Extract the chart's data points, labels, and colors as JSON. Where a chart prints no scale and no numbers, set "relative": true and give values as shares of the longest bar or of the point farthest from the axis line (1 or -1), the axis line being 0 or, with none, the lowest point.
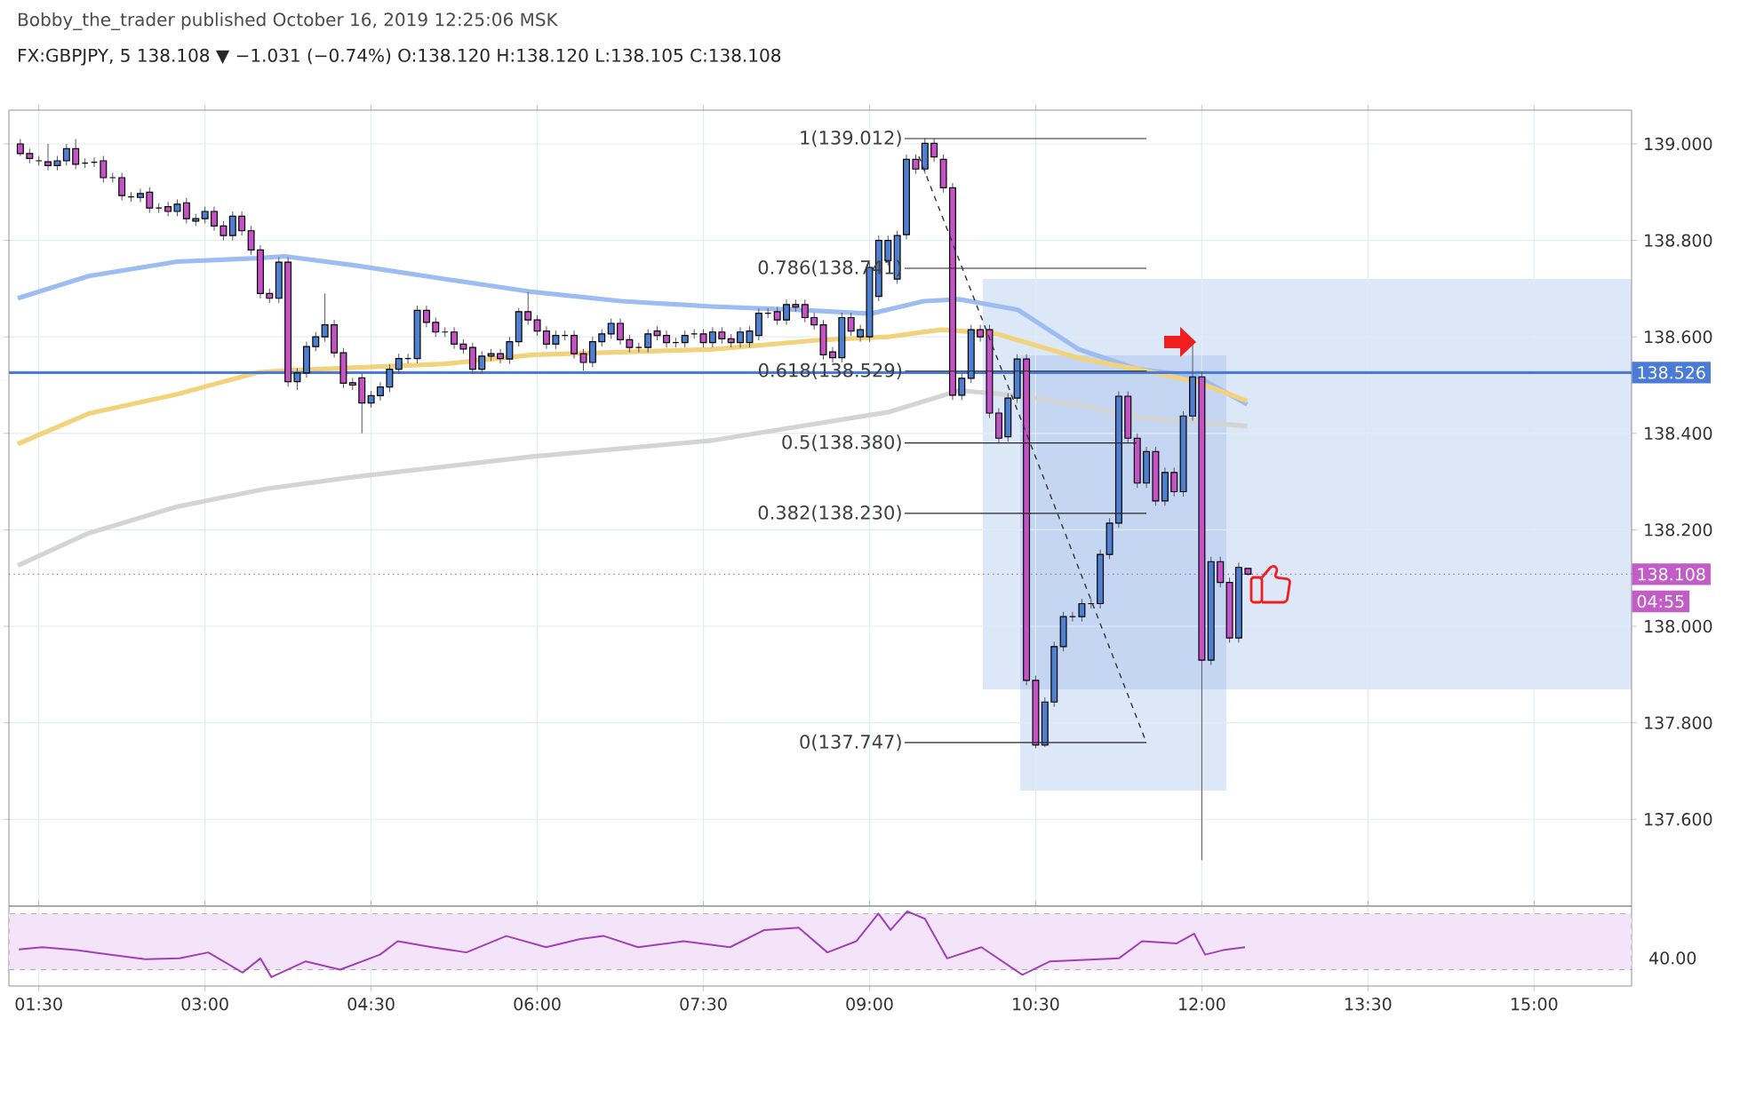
{
  "chart_data": [
    {
      "type": "candlestick",
      "title": "Bobby_the_trader published October 16, 2019 12:25:06 MSK",
      "subtitle": "FX:GBPJPY, 5  138.108 ▼ −1.031 (−0.74%) O:138.120 H:138.120 L:138.105 C:138.108",
      "x": [
        1.333,
        1.417,
        1.5,
        1.583,
        1.667,
        1.75,
        1.833,
        1.917,
        2,
        2.083,
        2.167,
        2.25,
        2.333,
        2.417,
        2.5,
        2.583,
        2.667,
        2.75,
        2.833,
        2.917,
        3,
        3.083,
        3.167,
        3.25,
        3.333,
        3.417,
        3.5,
        3.583,
        3.667,
        3.75,
        3.833,
        3.917,
        4,
        4.083,
        4.167,
        4.25,
        4.333,
        4.417,
        4.5,
        4.583,
        4.667,
        4.75,
        4.833,
        4.917,
        5,
        5.083,
        5.167,
        5.25,
        5.333,
        5.417,
        5.5,
        5.583,
        5.667,
        5.75,
        5.833,
        5.917,
        6,
        6.083,
        6.167,
        6.25,
        6.333,
        6.417,
        6.5,
        6.583,
        6.667,
        6.75,
        6.833,
        6.917,
        7,
        7.083,
        7.167,
        7.25,
        7.333,
        7.417,
        7.5,
        7.583,
        7.667,
        7.75,
        7.833,
        7.917,
        8,
        8.083,
        8.167,
        8.25,
        8.333,
        8.417,
        8.5,
        8.583,
        8.667,
        8.75,
        8.833,
        8.917,
        9,
        9.083,
        9.167,
        9.25,
        9.333,
        9.417,
        9.5,
        9.583,
        9.667,
        9.75,
        9.833,
        9.917,
        10,
        10.083,
        10.167,
        10.25,
        10.333,
        10.417,
        10.5,
        10.583,
        10.667,
        10.75,
        10.833,
        10.917,
        11,
        11.083,
        11.167,
        11.25,
        11.333,
        11.417,
        11.5,
        11.583,
        11.667,
        11.75,
        11.833,
        11.917,
        12,
        12.083,
        12.167,
        12.25,
        12.333,
        12.417
      ],
      "ohlc": [
        [
          139.0,
          139.01,
          138.975,
          138.98
        ],
        [
          138.98,
          138.99,
          138.96,
          138.97
        ],
        [
          138.965,
          138.975,
          138.955,
          138.965
        ],
        [
          138.963,
          139.0,
          138.945,
          138.955
        ],
        [
          138.955,
          138.975,
          138.945,
          138.965
        ],
        [
          138.965,
          139.0,
          138.955,
          138.99
        ],
        [
          138.99,
          139.01,
          138.948,
          138.958
        ],
        [
          138.96,
          138.97,
          138.95,
          138.96
        ],
        [
          138.962,
          138.972,
          138.952,
          138.962
        ],
        [
          138.965,
          138.975,
          138.92,
          138.93
        ],
        [
          138.93,
          138.94,
          138.92,
          138.93
        ],
        [
          138.93,
          138.94,
          138.883,
          138.893
        ],
        [
          138.89,
          138.9,
          138.88,
          138.89
        ],
        [
          138.889,
          138.907,
          138.879,
          138.897
        ],
        [
          138.9,
          138.91,
          138.857,
          138.867
        ],
        [
          138.867,
          138.877,
          138.857,
          138.867
        ],
        [
          138.87,
          138.88,
          138.85,
          138.86
        ],
        [
          138.86,
          138.885,
          138.85,
          138.875
        ],
        [
          138.878,
          138.888,
          138.835,
          138.845
        ],
        [
          138.84,
          138.855,
          138.83,
          138.845
        ],
        [
          138.845,
          138.87,
          138.835,
          138.86
        ],
        [
          138.86,
          138.87,
          138.82,
          138.83
        ],
        [
          138.83,
          138.84,
          138.8,
          138.81
        ],
        [
          138.81,
          138.86,
          138.8,
          138.85
        ],
        [
          138.85,
          138.86,
          138.81,
          138.82
        ],
        [
          138.82,
          138.83,
          138.77,
          138.78
        ],
        [
          138.78,
          138.79,
          138.68,
          138.69
        ],
        [
          138.69,
          138.7,
          138.67,
          138.68
        ],
        [
          138.68,
          138.765,
          138.67,
          138.755
        ],
        [
          138.755,
          138.765,
          138.497,
          138.507
        ],
        [
          138.507,
          138.535,
          138.49,
          138.525
        ],
        [
          138.525,
          138.59,
          138.515,
          138.58
        ],
        [
          138.58,
          138.61,
          138.57,
          138.6
        ],
        [
          138.6,
          138.69,
          138.59,
          138.625
        ],
        [
          138.625,
          138.635,
          138.557,
          138.567
        ],
        [
          138.567,
          138.577,
          138.494,
          138.504
        ],
        [
          138.505,
          138.515,
          138.49,
          138.5
        ],
        [
          138.515,
          138.525,
          138.4,
          138.463
        ],
        [
          138.463,
          138.488,
          138.453,
          138.478
        ],
        [
          138.478,
          138.506,
          138.468,
          138.496
        ],
        [
          138.496,
          138.543,
          138.486,
          138.533
        ],
        [
          138.533,
          138.565,
          138.523,
          138.555
        ],
        [
          138.555,
          138.565,
          138.545,
          138.555
        ],
        [
          138.555,
          138.665,
          138.545,
          138.655
        ],
        [
          138.655,
          138.665,
          138.62,
          138.63
        ],
        [
          138.63,
          138.64,
          138.6,
          138.61
        ],
        [
          138.61,
          138.62,
          138.6,
          138.61
        ],
        [
          138.61,
          138.62,
          138.575,
          138.585
        ],
        [
          138.585,
          138.595,
          138.565,
          138.575
        ],
        [
          138.578,
          138.588,
          138.523,
          138.533
        ],
        [
          138.533,
          138.57,
          138.523,
          138.56
        ],
        [
          138.56,
          138.575,
          138.55,
          138.565
        ],
        [
          138.565,
          138.575,
          138.545,
          138.555
        ],
        [
          138.554,
          138.6,
          138.544,
          138.59
        ],
        [
          138.59,
          138.66,
          138.58,
          138.652
        ],
        [
          138.652,
          138.693,
          138.625,
          138.635
        ],
        [
          138.635,
          138.645,
          138.602,
          138.612
        ],
        [
          138.612,
          138.622,
          138.575,
          138.585
        ],
        [
          138.585,
          138.613,
          138.575,
          138.603
        ],
        [
          138.603,
          138.613,
          138.593,
          138.603
        ],
        [
          138.603,
          138.613,
          138.555,
          138.565
        ],
        [
          138.565,
          138.575,
          138.53,
          138.547
        ],
        [
          138.547,
          138.6,
          138.537,
          138.59
        ],
        [
          138.59,
          138.616,
          138.58,
          138.606
        ],
        [
          138.606,
          138.638,
          138.596,
          138.628
        ],
        [
          138.628,
          138.638,
          138.584,
          138.594
        ],
        [
          138.594,
          138.604,
          138.568,
          138.578
        ],
        [
          138.578,
          138.588,
          138.568,
          138.578
        ],
        [
          138.578,
          138.616,
          138.568,
          138.606
        ],
        [
          138.612,
          138.622,
          138.593,
          138.603
        ],
        [
          138.603,
          138.613,
          138.578,
          138.588
        ],
        [
          138.588,
          138.598,
          138.578,
          138.588
        ],
        [
          138.588,
          138.613,
          138.578,
          138.603
        ],
        [
          138.606,
          138.616,
          138.596,
          138.606
        ],
        [
          138.606,
          138.616,
          138.578,
          138.588
        ],
        [
          138.588,
          138.62,
          138.578,
          138.61
        ],
        [
          138.61,
          138.62,
          138.586,
          138.596
        ],
        [
          138.596,
          138.606,
          138.578,
          138.588
        ],
        [
          138.588,
          138.62,
          138.578,
          138.61
        ],
        [
          138.588,
          138.622,
          138.578,
          138.612
        ],
        [
          138.603,
          138.659,
          138.593,
          138.649
        ],
        [
          138.649,
          138.659,
          138.639,
          138.649
        ],
        [
          138.652,
          138.662,
          138.625,
          138.635
        ],
        [
          138.635,
          138.677,
          138.625,
          138.667
        ],
        [
          138.667,
          138.677,
          138.652,
          138.662
        ],
        [
          138.667,
          138.677,
          138.63,
          138.64
        ],
        [
          138.64,
          138.65,
          138.615,
          138.625
        ],
        [
          138.625,
          138.635,
          138.553,
          138.563
        ],
        [
          138.569,
          138.579,
          138.547,
          138.557
        ],
        [
          138.557,
          138.65,
          138.547,
          138.64
        ],
        [
          138.64,
          138.65,
          138.602,
          138.612
        ],
        [
          138.6,
          138.625,
          138.59,
          138.615
        ],
        [
          138.6,
          138.754,
          138.59,
          138.744
        ],
        [
          138.684,
          138.81,
          138.674,
          138.8
        ],
        [
          138.758,
          138.81,
          138.748,
          138.8
        ],
        [
          138.72,
          138.82,
          138.71,
          138.81
        ],
        [
          138.812,
          138.978,
          138.802,
          138.968
        ],
        [
          138.968,
          138.978,
          138.938,
          138.948
        ],
        [
          138.948,
          139.012,
          138.938,
          139.001
        ],
        [
          139.001,
          139.011,
          138.963,
          138.973
        ],
        [
          138.968,
          138.978,
          138.899,
          138.909
        ],
        [
          138.909,
          138.919,
          138.469,
          138.479
        ],
        [
          138.479,
          138.524,
          138.469,
          138.514
        ],
        [
          138.514,
          138.625,
          138.504,
          138.615
        ],
        [
          138.615,
          138.625,
          138.59,
          138.6
        ],
        [
          138.615,
          138.625,
          138.432,
          138.442
        ],
        [
          138.442,
          138.452,
          138.38,
          138.39
        ],
        [
          138.393,
          138.483,
          138.383,
          138.473
        ],
        [
          138.473,
          138.564,
          138.463,
          138.554
        ],
        [
          138.554,
          138.564,
          137.878,
          137.888
        ],
        [
          137.888,
          137.898,
          137.747,
          137.754
        ],
        [
          137.754,
          137.853,
          137.75,
          137.843
        ],
        [
          137.843,
          137.968,
          137.833,
          137.958
        ],
        [
          137.958,
          138.03,
          137.948,
          138.02
        ],
        [
          138.02,
          138.03,
          138.01,
          138.02
        ],
        [
          138.02,
          138.057,
          138.01,
          138.047
        ],
        [
          138.047,
          138.057,
          138.037,
          138.047
        ],
        [
          138.047,
          138.159,
          138.037,
          138.149
        ],
        [
          138.149,
          138.224,
          138.139,
          138.214
        ],
        [
          138.214,
          138.487,
          138.204,
          138.477
        ],
        [
          138.477,
          138.487,
          138.38,
          138.39
        ],
        [
          138.39,
          138.4,
          138.287,
          138.297
        ],
        [
          138.297,
          138.372,
          138.287,
          138.362
        ],
        [
          138.362,
          138.372,
          138.25,
          138.26
        ],
        [
          138.26,
          138.329,
          138.25,
          138.319
        ],
        [
          138.319,
          138.329,
          138.269,
          138.279
        ],
        [
          138.279,
          138.446,
          138.269,
          138.436
        ],
        [
          138.436,
          138.588,
          138.426,
          138.517
        ],
        [
          138.517,
          138.527,
          137.515,
          137.93
        ],
        [
          137.93,
          138.144,
          137.92,
          138.134
        ],
        [
          138.134,
          138.144,
          138.081,
          138.091
        ],
        [
          138.091,
          138.101,
          137.966,
          137.976
        ],
        [
          137.976,
          138.132,
          137.966,
          138.122
        ],
        [
          138.12,
          138.12,
          138.105,
          138.108
        ]
      ],
      "series": [
        {
          "type": "line",
          "color": "#9dbcf2",
          "x": [
            1.31,
            1.95,
            2.75,
            3.47,
            3.72,
            4.36,
            5.16,
            5.96,
            6.76,
            7.57,
            8.37,
            9.01,
            9.49,
            9.81,
            10.34,
            10.89,
            11.42,
            11.95,
            12.41
          ],
          "values": [
            138.68,
            138.726,
            138.756,
            138.763,
            138.767,
            138.748,
            138.72,
            138.693,
            138.674,
            138.663,
            138.656,
            138.648,
            138.674,
            138.678,
            138.656,
            138.574,
            138.533,
            138.519,
            138.46
          ]
        },
        {
          "type": "line",
          "color": "#f3d27c",
          "x": [
            1.31,
            1.95,
            2.75,
            3.47,
            3.72,
            5.16,
            5.96,
            7.57,
            8.53,
            9.17,
            9.65,
            10.14,
            10.89,
            11.42,
            11.95,
            12.41
          ],
          "values": [
            138.378,
            138.441,
            138.481,
            138.526,
            138.53,
            138.544,
            138.563,
            138.574,
            138.593,
            138.6,
            138.615,
            138.607,
            138.556,
            138.533,
            138.507,
            138.467
          ]
        },
        {
          "type": "line",
          "color": "#d4d4d4",
          "x": [
            1.31,
            1.95,
            2.75,
            3.55,
            4.36,
            5.96,
            7.57,
            9.17,
            9.81,
            10.34,
            10.89,
            11.42,
            12.41
          ],
          "values": [
            138.126,
            138.193,
            138.248,
            138.285,
            138.31,
            138.352,
            138.385,
            138.444,
            138.489,
            138.478,
            138.459,
            138.433,
            138.415
          ]
        }
      ],
      "xlim": [
        1.23,
        15.88
      ],
      "ylim": [
        137.42,
        139.07
      ],
      "xticks": [
        {
          "value": 1.5,
          "label": null
        },
        {
          "value": 3,
          "label": null
        },
        {
          "value": 4.5,
          "label": null
        },
        {
          "value": 6,
          "label": null
        },
        {
          "value": 7.5,
          "label": null
        },
        {
          "value": 9,
          "label": null
        },
        {
          "value": 10.5,
          "label": null
        },
        {
          "value": 12,
          "label": null
        },
        {
          "value": 13.5,
          "label": null
        },
        {
          "value": 15,
          "label": null
        }
      ],
      "yticks": [
        {
          "value": 137.6,
          "label": "137.600"
        },
        {
          "value": 137.8,
          "label": "137.800"
        },
        {
          "value": 138.0,
          "label": "138.000"
        },
        {
          "value": 138.2,
          "label": "138.200"
        },
        {
          "value": 138.4,
          "label": "138.400"
        },
        {
          "value": 138.6,
          "label": "138.600"
        },
        {
          "value": 138.8,
          "label": "138.800"
        },
        {
          "value": 139.0,
          "label": "139.000"
        }
      ],
      "tick_labels": "y",
      "grid": true,
      "ref_lines": [
        {
          "axis": "y",
          "value": 138.526,
          "label": "138.526",
          "color": "#4a7bd6"
        },
        {
          "axis": "y",
          "value": 138.108,
          "label": "138.108",
          "color": "#c25dc8",
          "line_style": "dotted"
        }
      ],
      "annotations": [
        "1(139.012)",
        "0.786(138.741)",
        {
          "text": "0.618(138.529)",
          "x": 9.32,
          "y": 138.529
        },
        {
          "text": "0.5(138.380)",
          "x": 11.41,
          "y": 138.38
        },
        "0.382(138.230)",
        "0(137.747)",
        "04:55"
      ]
    },
    {
      "type": "line",
      "relative": true,
      "x": [
        1.32,
        1.53,
        1.84,
        2.15,
        2.46,
        2.77,
        3.03,
        3.34,
        3.5,
        3.6,
        3.91,
        4.22,
        4.58,
        4.74,
        5.05,
        5.36,
        5.72,
        6.08,
        6.39,
        6.6,
        6.91,
        7.32,
        7.74,
        8.05,
        8.36,
        8.62,
        8.88,
        9.08,
        9.19,
        9.34,
        9.5,
        9.7,
        10.01,
        10.38,
        10.63,
        11.25,
        11.46,
        11.77,
        11.93,
        12.03,
        12.19,
        12.39
      ],
      "series": [
        {
          "color": "#a23fb8",
          "values": [
            0.49,
            0.52,
            0.48,
            0.42,
            0.36,
            0.37,
            0.45,
            0.18,
            0.37,
            0.12,
            0.33,
            0.22,
            0.42,
            0.6,
            0.52,
            0.45,
            0.67,
            0.52,
            0.63,
            0.67,
            0.52,
            0.6,
            0.52,
            0.75,
            0.78,
            0.45,
            0.6,
            0.97,
            0.75,
            1,
            0.9,
            0.37,
            0.52,
            0.15,
            0.33,
            0.37,
            0.6,
            0.57,
            0.7,
            0.42,
            0.48,
            0.52
          ]
        }
      ],
      "bands": [
        {
          "axis": "y",
          "from": 0.22,
          "to": 0.97,
          "color": "#f3e4fa"
        }
      ],
      "xlim": [
        1.23,
        15.88
      ],
      "xticks": [
        {
          "value": 1.5,
          "label": "01:30"
        },
        {
          "value": 3,
          "label": "03:00"
        },
        {
          "value": 4.5,
          "label": "04:30"
        },
        {
          "value": 6,
          "label": "06:00"
        },
        {
          "value": 7.5,
          "label": "07:30"
        },
        {
          "value": 9,
          "label": "09:00"
        },
        {
          "value": 10.5,
          "label": "10:30"
        },
        {
          "value": 12,
          "label": "12:00"
        },
        {
          "value": 13.5,
          "label": "13:30"
        },
        {
          "value": 15,
          "label": "15:00"
        }
      ],
      "tick_labels": "x",
      "grid": "x",
      "annotations": [
        "40.00"
      ]
    }
  ]
}
